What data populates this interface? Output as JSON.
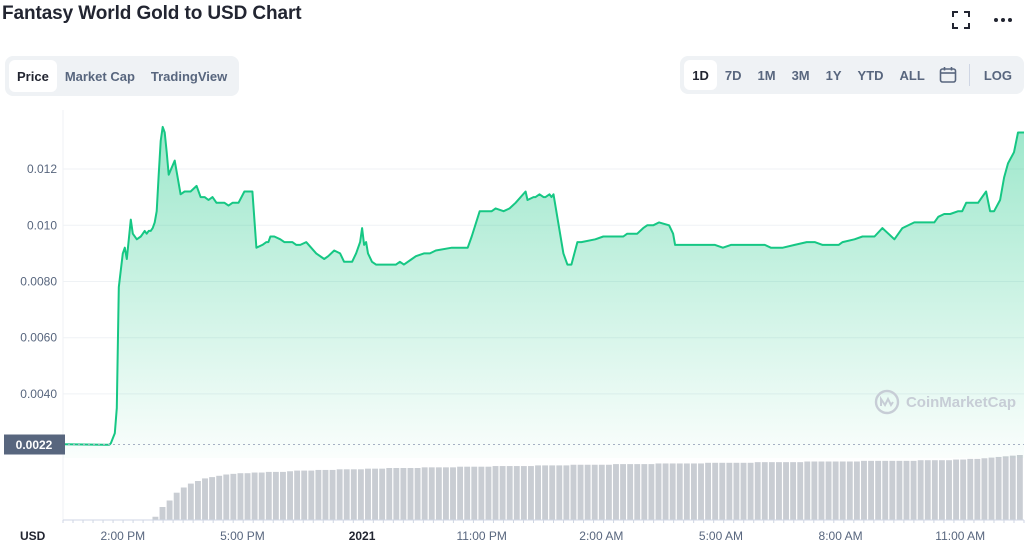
{
  "header": {
    "title": "Fantasy World Gold to USD Chart"
  },
  "icons": {
    "fullscreen": "fullscreen-icon",
    "more": "more-icon",
    "calendar": "calendar-icon",
    "watermark_logo": "coinmarketcap-logo-icon"
  },
  "tabs": [
    {
      "label": "Price",
      "active": true
    },
    {
      "label": "Market Cap",
      "active": false
    },
    {
      "label": "TradingView",
      "active": false
    }
  ],
  "ranges": [
    {
      "label": "1D",
      "active": true
    },
    {
      "label": "7D",
      "active": false
    },
    {
      "label": "1M",
      "active": false
    },
    {
      "label": "3M",
      "active": false
    },
    {
      "label": "1Y",
      "active": false
    },
    {
      "label": "YTD",
      "active": false
    },
    {
      "label": "ALL",
      "active": false
    }
  ],
  "log_label": "LOG",
  "watermark": "CoinMarketCap",
  "colors": {
    "line": "#16c784",
    "fill_top": "#16c784",
    "label_bg": "#58667e",
    "volume": "#c9cdd3",
    "axis_text": "#58667e"
  },
  "chart_data": {
    "type": "area",
    "currency_label": "USD",
    "current_price_label": "0.0022",
    "ylim": [
      0.00172,
      0.0141
    ],
    "yticks": [
      {
        "value": 0.004,
        "label": "0.0040"
      },
      {
        "value": 0.006,
        "label": "0.0060"
      },
      {
        "value": 0.008,
        "label": "0.0080"
      },
      {
        "value": 0.01,
        "label": "0.010"
      },
      {
        "value": 0.012,
        "label": "0.012"
      }
    ],
    "xlim": [
      -1.5,
      22.6
    ],
    "xticks": [
      {
        "x": 0,
        "label": "2:00 PM",
        "bold": false
      },
      {
        "x": 3,
        "label": "5:00 PM",
        "bold": false
      },
      {
        "x": 6,
        "label": "2021",
        "bold": true
      },
      {
        "x": 9,
        "label": "11:00 PM",
        "bold": false
      },
      {
        "x": 12,
        "label": "2:00 AM",
        "bold": false
      },
      {
        "x": 15,
        "label": "5:00 AM",
        "bold": false
      },
      {
        "x": 18,
        "label": "8:00 AM",
        "bold": false
      },
      {
        "x": 21,
        "label": "11:00 AM",
        "bold": false
      }
    ],
    "series": [
      {
        "x": [
          -1.5,
          -0.45,
          -0.35,
          -0.33,
          -0.3,
          -0.2,
          -0.15,
          -0.1,
          -0.05,
          0,
          0.05,
          0.1,
          0.15,
          0.2,
          0.25,
          0.35,
          0.45,
          0.5,
          0.55,
          0.6,
          0.65,
          0.7,
          0.75,
          0.8,
          0.85,
          0.9,
          0.95,
          1.0,
          1.05,
          1.1,
          1.15,
          1.3,
          1.45,
          1.55,
          1.7,
          1.85,
          1.95,
          2.05,
          2.15,
          2.25,
          2.35,
          2.55,
          2.65,
          2.75,
          2.9,
          3.05,
          3.15,
          3.25,
          3.35,
          3.5,
          3.6,
          3.65,
          3.7,
          3.8,
          3.95,
          4.05,
          4.15,
          4.25,
          4.35,
          4.45,
          4.6,
          4.85,
          5.05,
          5.15,
          5.3,
          5.45,
          5.55,
          5.75,
          5.85,
          5.95,
          6.0,
          6.05,
          6.1,
          6.15,
          6.25,
          6.35,
          6.4,
          6.55,
          6.85,
          6.95,
          7.05,
          7.25,
          7.35,
          7.55,
          7.7,
          7.85,
          8.25,
          8.55,
          8.65,
          8.75,
          8.95,
          9.25,
          9.35,
          9.55,
          9.7,
          9.85,
          10.1,
          10.15,
          10.3,
          10.35,
          10.45,
          10.55,
          10.6,
          10.7,
          10.75,
          10.8,
          11.05,
          11.15,
          11.25,
          11.4,
          11.5,
          11.85,
          12.05,
          12.25,
          12.55,
          12.65,
          12.9,
          13.05,
          13.15,
          13.3,
          13.45,
          13.7,
          13.8,
          13.85,
          14.05,
          14.25,
          14.55,
          14.85,
          15.05,
          15.25,
          15.55,
          15.85,
          16.1,
          16.25,
          16.55,
          16.85,
          17.15,
          17.35,
          17.55,
          17.95,
          18.05,
          18.35,
          18.55,
          18.65,
          18.85,
          19.05,
          19.35,
          19.55,
          19.85,
          19.95,
          20.15,
          20.35,
          20.45,
          20.6,
          20.75,
          20.95,
          21.05,
          21.15,
          21.3,
          21.45,
          21.55,
          21.65,
          21.75,
          21.85,
          22.0,
          22.1,
          22.2,
          22.35,
          22.45,
          22.55,
          22.6
        ],
        "y": [
          0.00221,
          0.00219,
          0.00219,
          0.0022,
          0.00225,
          0.0026,
          0.0035,
          0.0078,
          0.0084,
          0.009,
          0.0092,
          0.0088,
          0.0095,
          0.0102,
          0.0097,
          0.0095,
          0.0096,
          0.0097,
          0.0098,
          0.0097,
          0.0098,
          0.0098,
          0.0099,
          0.0101,
          0.0105,
          0.0118,
          0.013,
          0.0135,
          0.0133,
          0.0126,
          0.0118,
          0.0123,
          0.0111,
          0.0112,
          0.0112,
          0.0114,
          0.011,
          0.011,
          0.0109,
          0.011,
          0.0108,
          0.0108,
          0.0107,
          0.0108,
          0.0108,
          0.0112,
          0.0112,
          0.0112,
          0.0092,
          0.0093,
          0.0094,
          0.0094,
          0.0096,
          0.0096,
          0.0095,
          0.0094,
          0.0094,
          0.0094,
          0.0093,
          0.0093,
          0.0094,
          0.009,
          0.0088,
          0.0089,
          0.0091,
          0.009,
          0.0087,
          0.0087,
          0.009,
          0.0094,
          0.0099,
          0.0093,
          0.0094,
          0.009,
          0.0087,
          0.0086,
          0.0086,
          0.0086,
          0.0086,
          0.0087,
          0.0086,
          0.0088,
          0.0089,
          0.009,
          0.009,
          0.0091,
          0.0092,
          0.0092,
          0.0092,
          0.0096,
          0.0105,
          0.0105,
          0.0106,
          0.0105,
          0.0106,
          0.0108,
          0.0112,
          0.0109,
          0.011,
          0.011,
          0.0111,
          0.011,
          0.011,
          0.0111,
          0.011,
          0.0111,
          0.009,
          0.0086,
          0.0086,
          0.0094,
          0.0094,
          0.0095,
          0.0096,
          0.0096,
          0.0096,
          0.0097,
          0.0097,
          0.0099,
          0.01,
          0.01,
          0.0101,
          0.01,
          0.0097,
          0.0093,
          0.0093,
          0.0093,
          0.0093,
          0.0093,
          0.0092,
          0.0093,
          0.0093,
          0.0093,
          0.0093,
          0.0092,
          0.0092,
          0.0093,
          0.0094,
          0.0094,
          0.0093,
          0.0093,
          0.0094,
          0.0095,
          0.0096,
          0.0096,
          0.0096,
          0.0099,
          0.0095,
          0.0099,
          0.0101,
          0.0101,
          0.0101,
          0.0101,
          0.0103,
          0.0104,
          0.0104,
          0.0105,
          0.0105,
          0.0108,
          0.0108,
          0.0108,
          0.011,
          0.0112,
          0.0105,
          0.0105,
          0.0109,
          0.0117,
          0.0122,
          0.0126,
          0.0133,
          0.0133,
          0.0133
        ]
      }
    ],
    "volume_note": "volume bars shown beneath price, relative heights",
    "volume": [
      0.0,
      0.0,
      0.0,
      0.0,
      0.0,
      0.0,
      0.0,
      0.05,
      0.2,
      0.3,
      0.42,
      0.5,
      0.56,
      0.6,
      0.64,
      0.66,
      0.68,
      0.7,
      0.71,
      0.72,
      0.72,
      0.73,
      0.73,
      0.74,
      0.74,
      0.74,
      0.75,
      0.76,
      0.76,
      0.76,
      0.77,
      0.77,
      0.77,
      0.78,
      0.78,
      0.78,
      0.78,
      0.79,
      0.79,
      0.79,
      0.8,
      0.8,
      0.8,
      0.8,
      0.8,
      0.81,
      0.81,
      0.81,
      0.81,
      0.81,
      0.82,
      0.82,
      0.82,
      0.82,
      0.82,
      0.83,
      0.83,
      0.83,
      0.83,
      0.83,
      0.83,
      0.84,
      0.84,
      0.84,
      0.84,
      0.84,
      0.85,
      0.85,
      0.85,
      0.85,
      0.85,
      0.85,
      0.86,
      0.86,
      0.86,
      0.86,
      0.86,
      0.86,
      0.87,
      0.87,
      0.87,
      0.87,
      0.87,
      0.87,
      0.87,
      0.88,
      0.88,
      0.88,
      0.88,
      0.88,
      0.88,
      0.88,
      0.89,
      0.89,
      0.89,
      0.89,
      0.89,
      0.89,
      0.89,
      0.9,
      0.9,
      0.9,
      0.9,
      0.9,
      0.9,
      0.9,
      0.9,
      0.91,
      0.91,
      0.91,
      0.91,
      0.91,
      0.91,
      0.91,
      0.91,
      0.92,
      0.92,
      0.92,
      0.92,
      0.92,
      0.93,
      0.93,
      0.94,
      0.94,
      0.95,
      0.96,
      0.97,
      0.98,
      0.99,
      1.0
    ]
  }
}
